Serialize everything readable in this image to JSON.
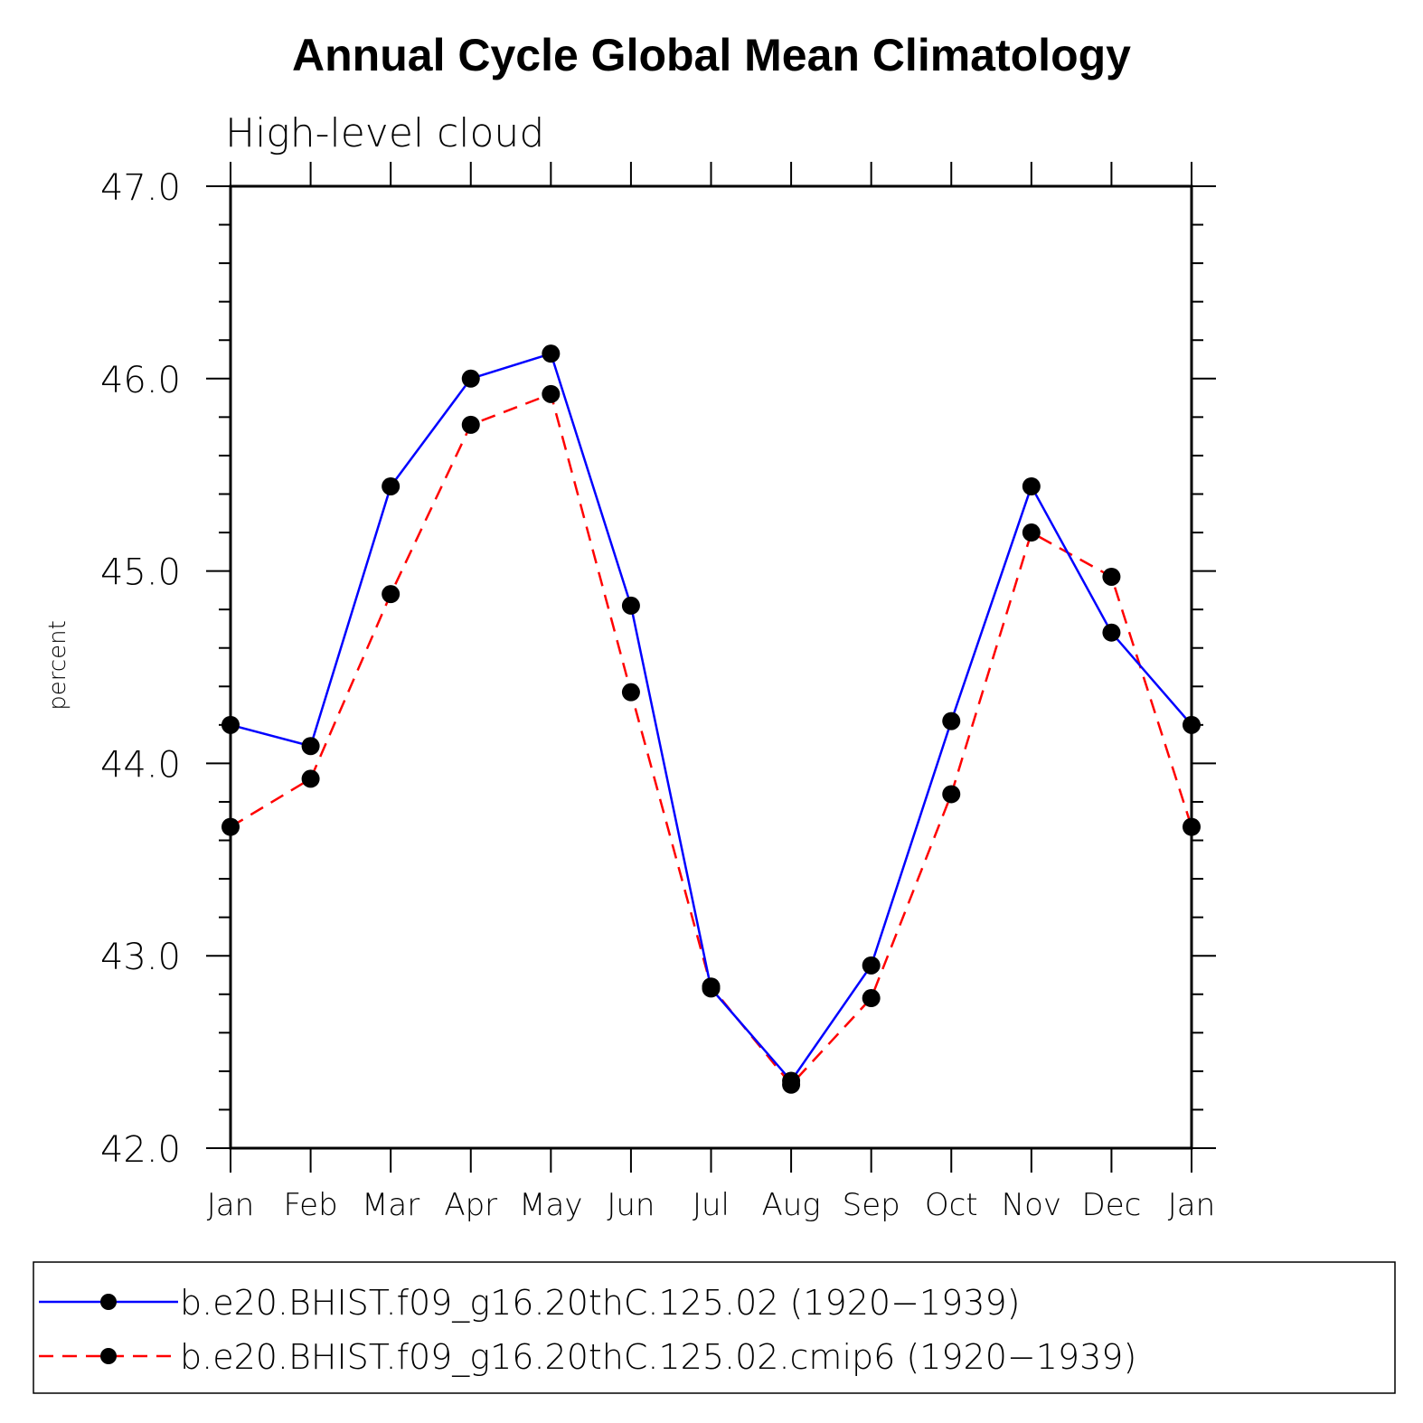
{
  "chart_data": {
    "type": "line",
    "title": "Annual Cycle Global Mean Climatology",
    "subtitle": "High-level cloud",
    "ylabel": "percent",
    "xlabel": "",
    "ylim": [
      42.0,
      47.0
    ],
    "ytick_values": [
      42.0,
      43.0,
      44.0,
      45.0,
      46.0,
      47.0
    ],
    "ytick_labels": [
      "42.0",
      "43.0",
      "44.0",
      "45.0",
      "46.0",
      "47.0"
    ],
    "y_minor_step": 0.2,
    "categories": [
      "Jan",
      "Feb",
      "Mar",
      "Apr",
      "May",
      "Jun",
      "Jul",
      "Aug",
      "Sep",
      "Oct",
      "Nov",
      "Dec",
      "Jan"
    ],
    "series": [
      {
        "name": "b.e20.BHIST.f09_g16.20thC.125.02 (1920−1939)",
        "color": "#0000ff",
        "style": "solid",
        "marker": "filled-circle",
        "values": [
          44.2,
          44.09,
          45.44,
          46.0,
          46.13,
          44.82,
          42.83,
          42.35,
          42.95,
          44.22,
          45.44,
          44.68,
          44.2
        ]
      },
      {
        "name": "b.e20.BHIST.f09_g16.20thC.125.02.cmip6 (1920−1939)",
        "color": "#ff0000",
        "style": "dashed",
        "marker": "filled-circle",
        "values": [
          43.67,
          43.92,
          44.88,
          45.76,
          45.92,
          44.37,
          42.84,
          42.33,
          42.78,
          43.84,
          45.2,
          44.97,
          43.67
        ]
      }
    ]
  }
}
